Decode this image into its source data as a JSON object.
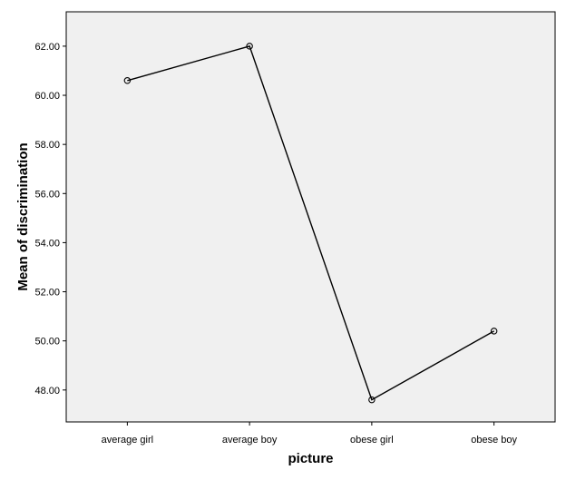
{
  "chart_data": {
    "type": "line",
    "title": "",
    "xlabel": "picture",
    "ylabel": "Mean of discrimination",
    "categories": [
      "average girl",
      "average boy",
      "obese girl",
      "obese boy"
    ],
    "series": [
      {
        "values": [
          60.6,
          62.0,
          47.6,
          50.4
        ]
      }
    ],
    "ylim": [
      46.7,
      63.4
    ],
    "yticks": [
      48,
      50,
      52,
      54,
      56,
      58,
      60,
      62
    ],
    "ytick_labels": [
      "48.00",
      "50.00",
      "52.00",
      "54.00",
      "56.00",
      "58.00",
      "60.00",
      "62.00"
    ],
    "grid": false,
    "legend": "none",
    "colors": {
      "plot_background": "#f0f0f0",
      "line": "#000000",
      "marker_edge": "#000000"
    }
  }
}
